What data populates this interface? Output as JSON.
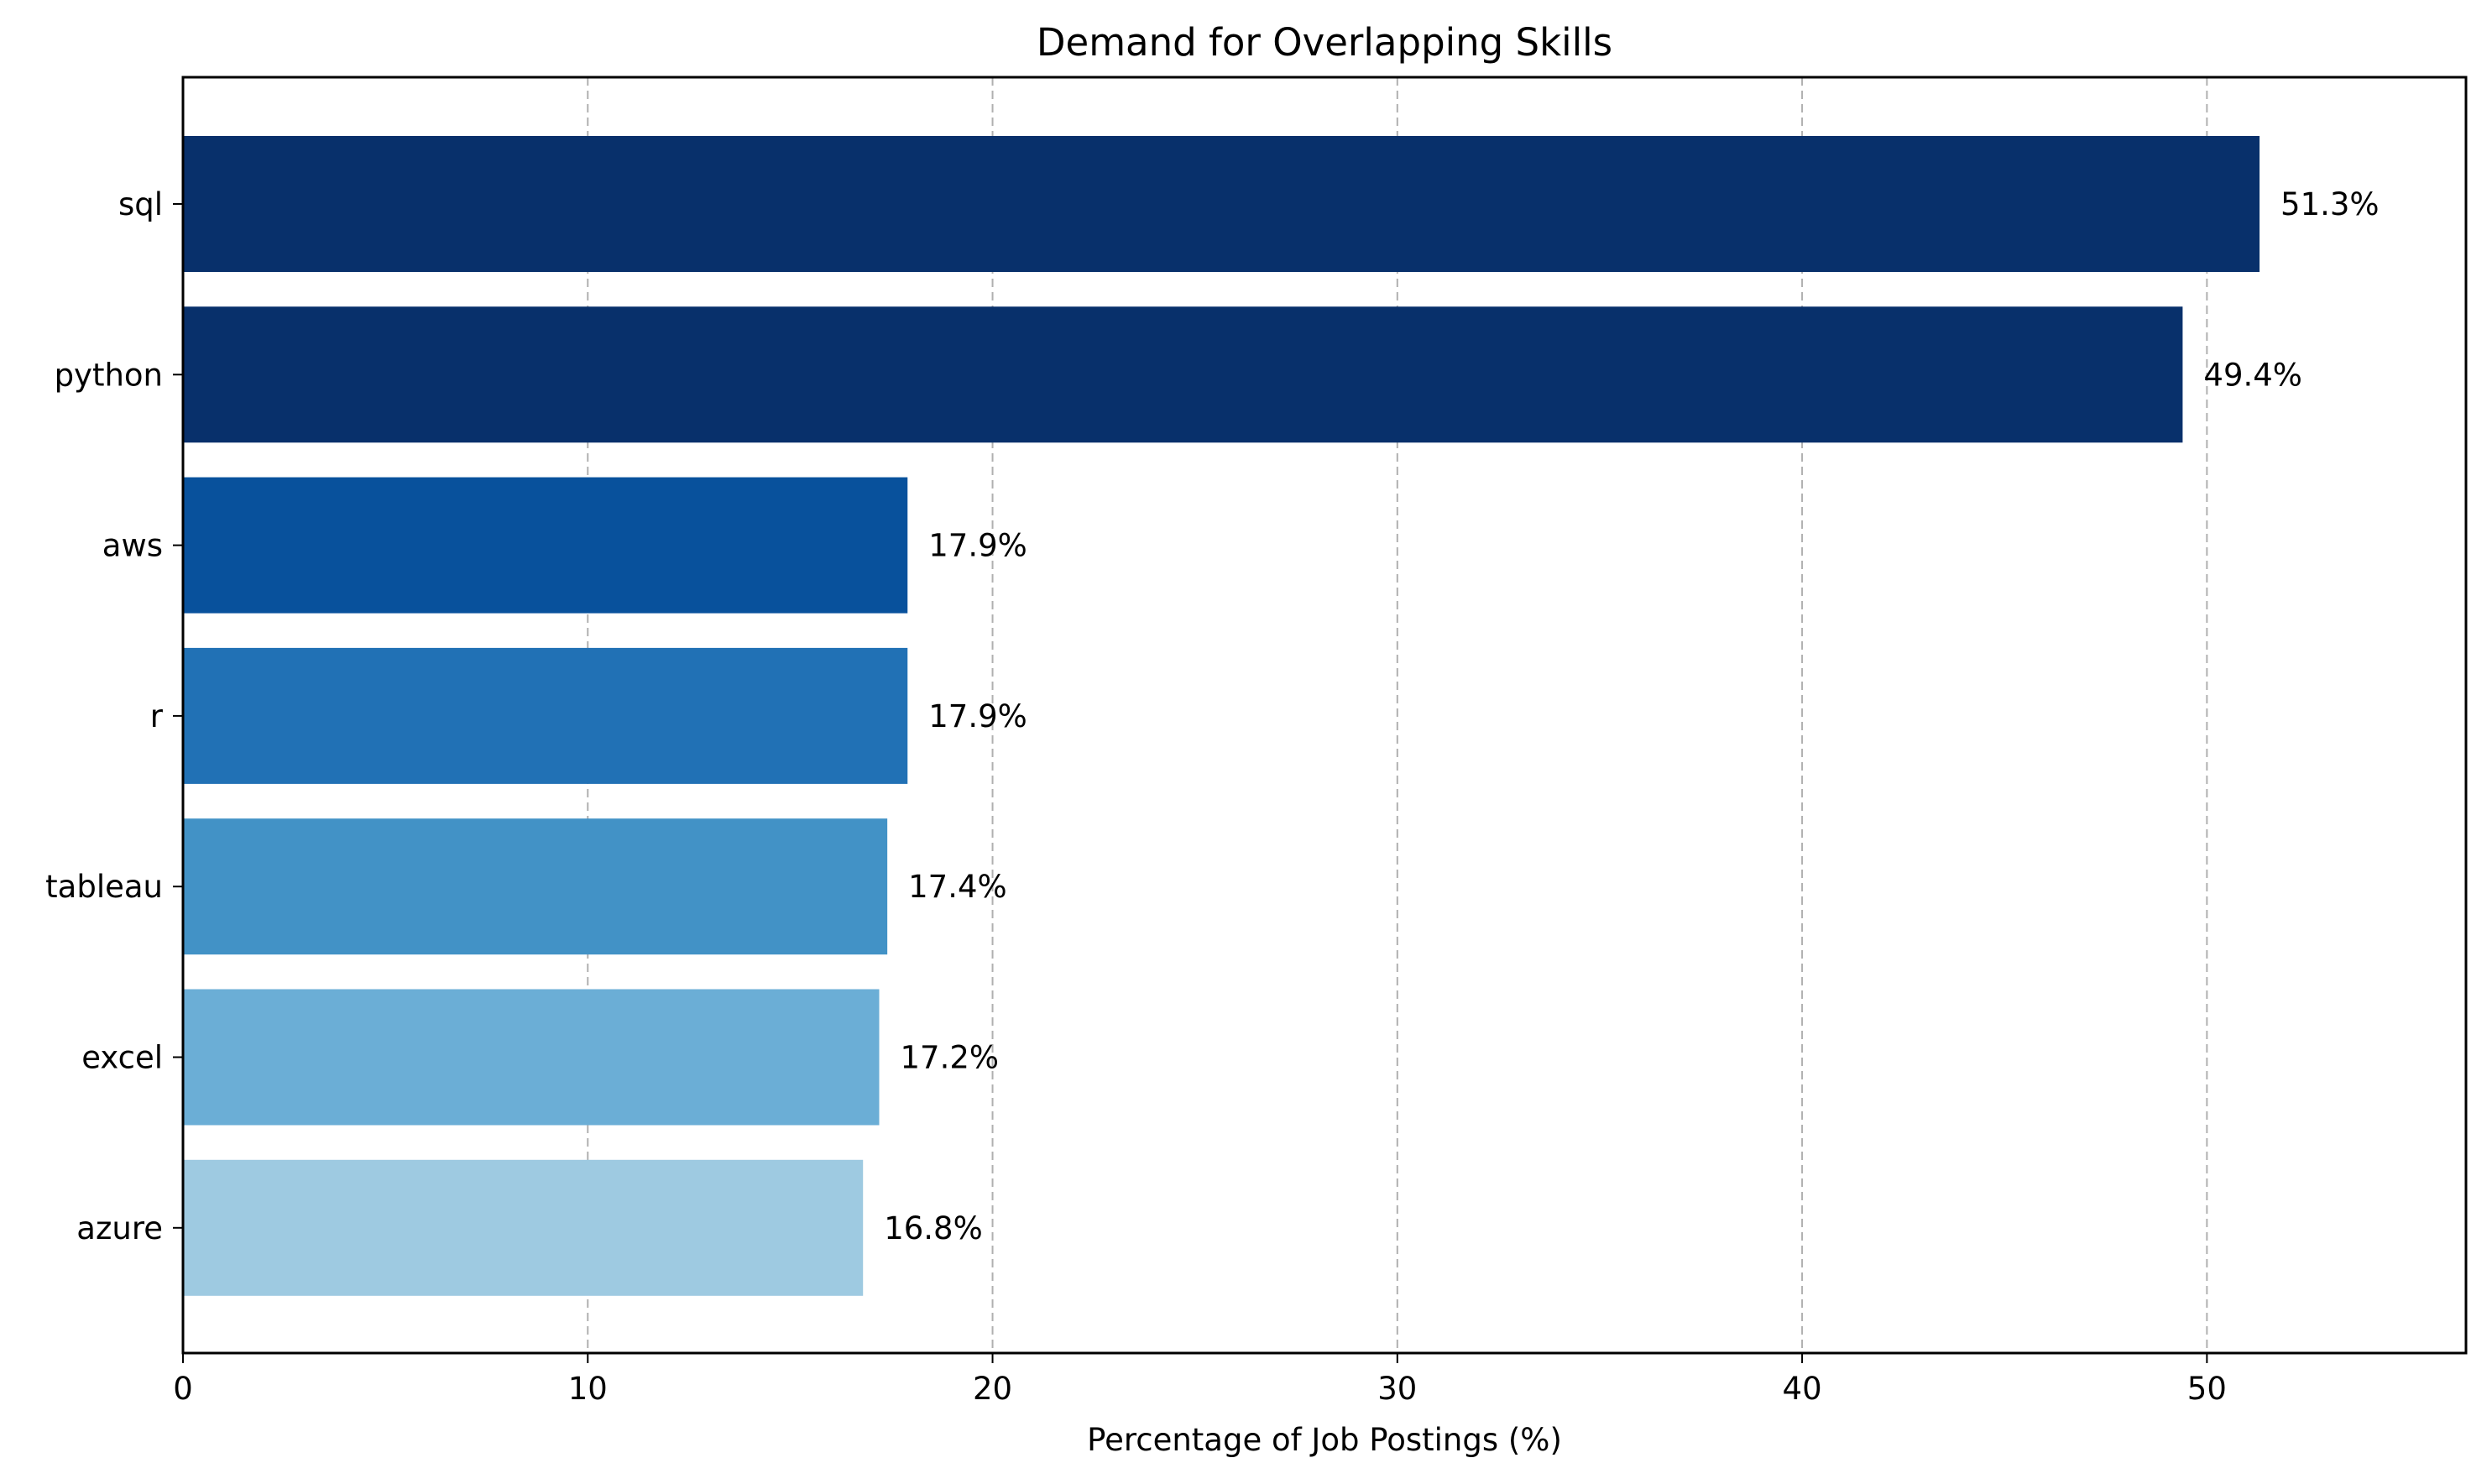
{
  "chart_data": {
    "type": "bar",
    "orientation": "horizontal",
    "title": "Demand for Overlapping Skills",
    "xlabel": "Percentage of Job Postings (%)",
    "ylabel": "",
    "xlim": [
      0,
      56.4
    ],
    "xticks": [
      "0",
      "10",
      "20",
      "30",
      "40",
      "50"
    ],
    "grid": "x, dashed",
    "categories": [
      "sql",
      "python",
      "aws",
      "r",
      "tableau",
      "excel",
      "azure"
    ],
    "values": [
      51.3,
      49.4,
      17.9,
      17.9,
      17.4,
      17.2,
      16.8
    ],
    "data_labels": [
      "51.3%",
      "49.4%",
      "17.9%",
      "17.9%",
      "17.4%",
      "17.2%",
      "16.8%"
    ],
    "colors": [
      "#08306b",
      "#08306b",
      "#08519c",
      "#2171b5",
      "#4292c6",
      "#6baed6",
      "#9ecae1"
    ]
  }
}
